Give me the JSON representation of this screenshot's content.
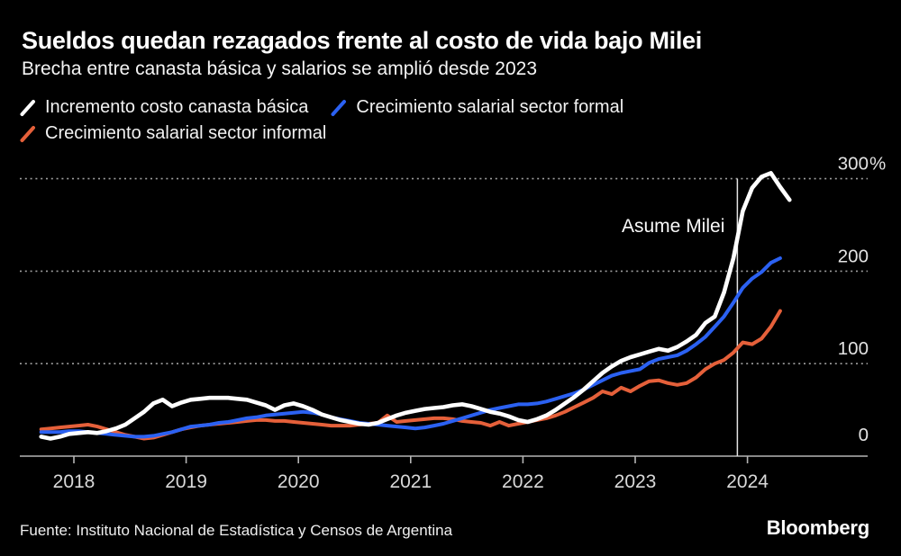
{
  "header": {
    "title": "Sueldos quedan rezagados frente al costo de vida bajo Milei",
    "subtitle": "Brecha entre canasta básica y salarios se amplió desde 2023"
  },
  "legend": [
    {
      "label": "Incremento costo canasta básica",
      "color": "#ffffff"
    },
    {
      "label": "Crecimiento salarial sector formal",
      "color": "#2b61f2"
    },
    {
      "label": "Crecimiento salarial sector informal",
      "color": "#e5603a"
    }
  ],
  "footer": {
    "source": "Fuente: Instituto Nacional de Estadística y Censos de Argentina",
    "brand": "Bloomberg"
  },
  "chart_data": {
    "type": "line",
    "x_start": "2017-09",
    "x_interval": "monthly",
    "x_axis_ticks": [
      2018,
      2019,
      2020,
      2021,
      2022,
      2023,
      2024
    ],
    "y_axis_ticks": [
      {
        "v": 0,
        "label": "0"
      },
      {
        "v": 100,
        "label": "100"
      },
      {
        "v": 200,
        "label": "200"
      },
      {
        "v": 300,
        "label": "300%"
      }
    ],
    "y_unit": "%",
    "ylim": [
      0,
      320
    ],
    "grid": "dotted-horizontal",
    "legend_position": "top",
    "annotation": {
      "label": "Asume Milei",
      "x_year": 2023.91
    },
    "series": [
      {
        "name": "Incremento costo canasta básica",
        "color": "#ffffff",
        "values": [
          21,
          19,
          21,
          24,
          25,
          26,
          25,
          27,
          30,
          34,
          41,
          48,
          57,
          61,
          54,
          58,
          61,
          62,
          63,
          63,
          63,
          62,
          61,
          58,
          55,
          50,
          55,
          57,
          54,
          50,
          45,
          42,
          39,
          37,
          35,
          34,
          36,
          40,
          44,
          47,
          49,
          51,
          52,
          53,
          55,
          56,
          54,
          51,
          48,
          46,
          43,
          39,
          37,
          40,
          44,
          50,
          57,
          64,
          72,
          81,
          90,
          97,
          103,
          107,
          110,
          113,
          116,
          114,
          118,
          124,
          131,
          144,
          151,
          177,
          214,
          265,
          290,
          302,
          306,
          291,
          277
        ]
      },
      {
        "name": "Crecimiento salarial sector formal",
        "color": "#2b61f2",
        "values": [
          26,
          26,
          26,
          27,
          27,
          26,
          25,
          24,
          23,
          22,
          21,
          21,
          22,
          24,
          26,
          29,
          32,
          33,
          34,
          36,
          37,
          39,
          41,
          42,
          44,
          45,
          46,
          47,
          48,
          47,
          45,
          42,
          40,
          38,
          36,
          35,
          34,
          33,
          32,
          31,
          30,
          31,
          33,
          35,
          38,
          41,
          44,
          47,
          50,
          52,
          54,
          56,
          56,
          57,
          59,
          62,
          65,
          68,
          72,
          77,
          82,
          87,
          90,
          92,
          94,
          101,
          105,
          107,
          109,
          114,
          121,
          129,
          140,
          151,
          166,
          182,
          192,
          199,
          209,
          214
        ]
      },
      {
        "name": "Crecimiento salarial sector informal",
        "color": "#e5603a",
        "values": [
          29,
          30,
          31,
          32,
          33,
          34,
          32,
          29,
          26,
          23,
          21,
          19,
          20,
          23,
          26,
          29,
          31,
          33,
          34,
          35,
          36,
          37,
          38,
          39,
          39,
          38,
          38,
          37,
          36,
          35,
          34,
          33,
          33,
          33,
          34,
          35,
          36,
          44,
          37,
          38,
          39,
          40,
          41,
          41,
          40,
          38,
          37,
          36,
          33,
          37,
          33,
          35,
          37,
          39,
          41,
          44,
          48,
          53,
          58,
          63,
          70,
          67,
          74,
          70,
          76,
          81,
          82,
          79,
          77,
          79,
          85,
          94,
          100,
          104,
          112,
          123,
          121,
          127,
          140,
          157
        ]
      }
    ]
  }
}
